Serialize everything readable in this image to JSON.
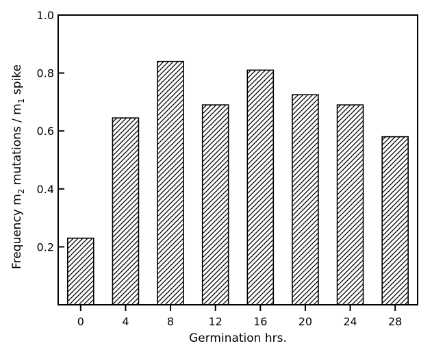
{
  "chart_data": {
    "type": "bar",
    "title": "",
    "xlabel": "Germination hrs.",
    "ylabel": {
      "prefix": "Frequency m",
      "sub1": "2",
      "middle": " mutations / m",
      "sub2": "1",
      "suffix": " spike"
    },
    "categories": [
      "0",
      "4",
      "8",
      "12",
      "16",
      "20",
      "24",
      "28"
    ],
    "values": [
      0.23,
      0.645,
      0.84,
      0.69,
      0.81,
      0.725,
      0.69,
      0.58
    ],
    "ylim": [
      0.0,
      1.0
    ],
    "yticks": [
      0.2,
      0.4,
      0.6,
      0.8,
      1.0
    ],
    "ytick_labels": [
      "0.2",
      "0.4",
      "0.6",
      "0.8",
      "1.0"
    ],
    "grid": false,
    "bar_fill": "diagonal-hatch",
    "colors": {
      "bar_edge": "#000000",
      "hatch": "#000000",
      "background": "#ffffff"
    }
  }
}
